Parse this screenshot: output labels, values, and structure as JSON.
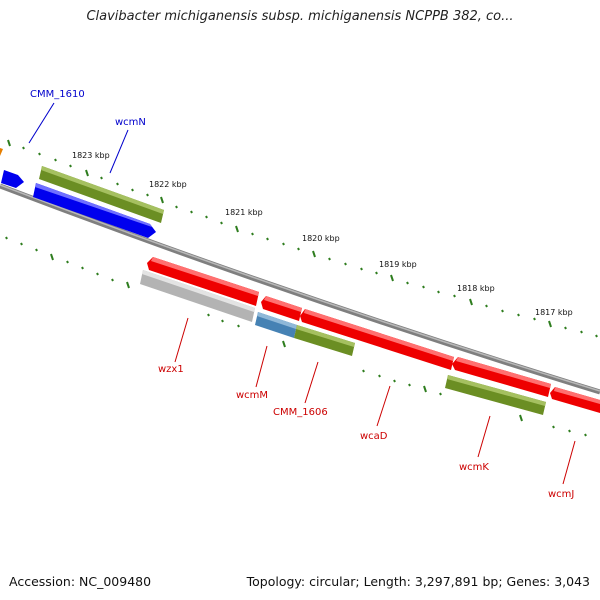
{
  "title": "Clavibacter michiganensis subsp. michiganensis NCPPB 382, co...",
  "footer": {
    "accession": "Accession: NC_009480",
    "summary": "Topology: circular; Length: 3,297,891 bp; Genes: 3,043"
  },
  "ticks": [
    "1823 kbp",
    "1822 kbp",
    "1821 kbp",
    "1820 kbp",
    "1819 kbp",
    "1818 kbp",
    "1817 kbp"
  ],
  "gene_labels": {
    "cmm1610": "CMM_1610",
    "wcmN": "wcmN",
    "wzx1": "wzx1",
    "wcmM": "wcmM",
    "cmm1606": "CMM_1606",
    "wcaD": "wcaD",
    "wcmK": "wcmK",
    "wcmJ": "wcmJ"
  },
  "colors": {
    "forward_cds": "#0000ff",
    "reverse_cds": "#ff0000",
    "green_feature": "#6b8e23",
    "gray_feature": "#b0b0b0",
    "light_blue_feature": "#4682b4",
    "tick_color": "#2e7d1e",
    "backbone": "#888888",
    "forward_label": "#0000cc",
    "reverse_label": "#cc0000"
  }
}
